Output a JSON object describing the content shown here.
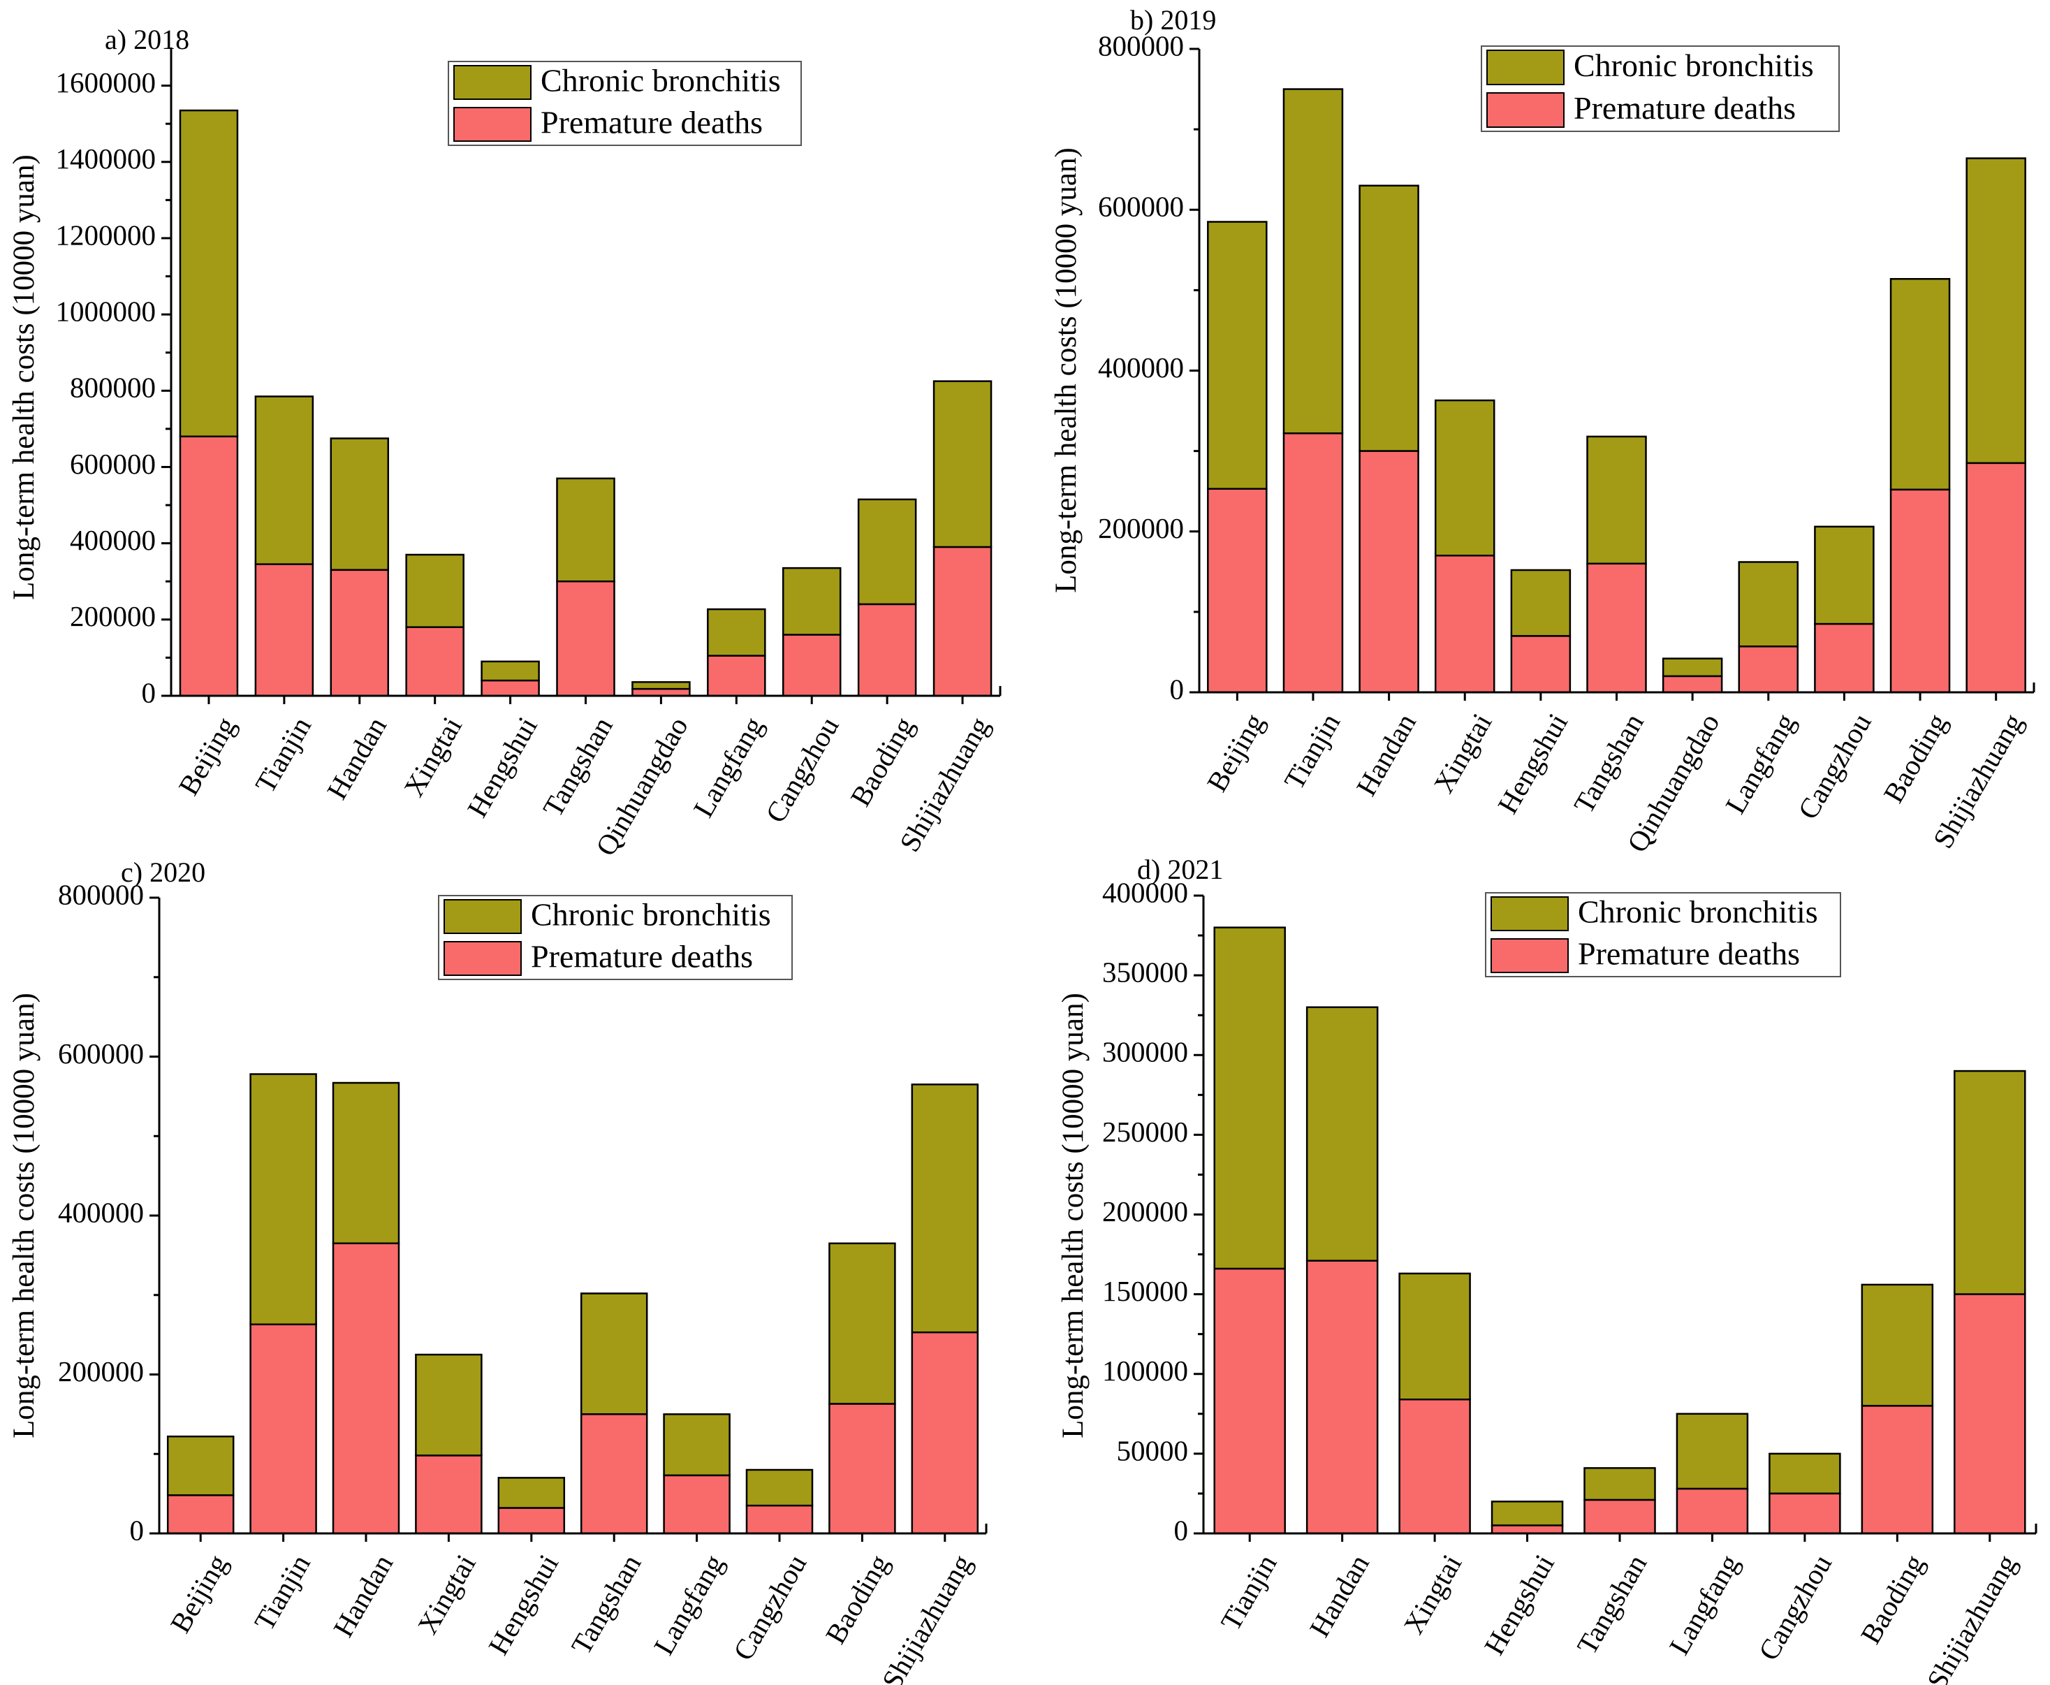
{
  "colors": {
    "chronic_bronchitis": "#A39B15",
    "premature_deaths": "#F96B6B"
  },
  "chart_data": [
    {
      "type": "bar",
      "stacked": true,
      "title": "a) 2018",
      "ylabel": "Long-term health costs (10000 yuan)",
      "xlabel": "",
      "ylim": [
        0,
        1700000
      ],
      "yticks": [
        0,
        200000,
        400000,
        600000,
        800000,
        1000000,
        1200000,
        1400000,
        1600000
      ],
      "ytick_labels": [
        "0",
        "200000",
        "400000",
        "600000",
        "800000",
        "1000000",
        "1200000",
        "1400000",
        "1600000"
      ],
      "legend_position": "top-right",
      "categories": [
        "Beijing",
        "Tianjin",
        "Handan",
        "Xingtai",
        "Hengshui",
        "Tangshan",
        "Qinhuangdao",
        "Langfang",
        "Cangzhou",
        "Baoding",
        "Shijiazhuang"
      ],
      "series": [
        {
          "name": "Premature deaths",
          "values": [
            680000,
            345000,
            330000,
            180000,
            40000,
            300000,
            18000,
            105000,
            160000,
            240000,
            390000
          ]
        },
        {
          "name": "Chronic bronchitis",
          "values": [
            855000,
            440000,
            345000,
            190000,
            50000,
            270000,
            18000,
            122000,
            175000,
            275000,
            435000
          ]
        }
      ]
    },
    {
      "type": "bar",
      "stacked": true,
      "title": "b) 2019",
      "ylabel": "Long-term health costs (10000 yuan)",
      "xlabel": "",
      "ylim": [
        0,
        800000
      ],
      "yticks": [
        0,
        200000,
        400000,
        600000,
        800000
      ],
      "ytick_labels": [
        "0",
        "200000",
        "400000",
        "600000",
        "800000"
      ],
      "legend_position": "top-right",
      "categories": [
        "Beijing",
        "Tianjin",
        "Handan",
        "Xingtai",
        "Hengshui",
        "Tangshan",
        "Qinhuangdao",
        "Langfang",
        "Cangzhou",
        "Baoding",
        "Shijiazhuang"
      ],
      "series": [
        {
          "name": "Premature deaths",
          "values": [
            253000,
            322000,
            300000,
            170000,
            70000,
            160000,
            20000,
            57000,
            85000,
            252000,
            285000
          ]
        },
        {
          "name": "Chronic bronchitis",
          "values": [
            332000,
            428000,
            330000,
            193000,
            82000,
            158000,
            22000,
            105000,
            121000,
            262000,
            379000
          ]
        }
      ]
    },
    {
      "type": "bar",
      "stacked": true,
      "title": "c) 2020",
      "ylabel": "Long-term health costs (10000 yuan)",
      "xlabel": "",
      "ylim": [
        0,
        800000
      ],
      "yticks": [
        0,
        200000,
        400000,
        600000,
        800000
      ],
      "ytick_labels": [
        "0",
        "200000",
        "400000",
        "600000",
        "800000"
      ],
      "legend_position": "top-right",
      "categories": [
        "Beijing",
        "Tianjin",
        "Handan",
        "Xingtai",
        "Hengshui",
        "Tangshan",
        "Langfang",
        "Cangzhou",
        "Baoding",
        "Shijiazhuang"
      ],
      "series": [
        {
          "name": "Premature deaths",
          "values": [
            48000,
            263000,
            365000,
            98000,
            32000,
            150000,
            73000,
            35000,
            163000,
            253000
          ]
        },
        {
          "name": "Chronic bronchitis",
          "values": [
            74000,
            315000,
            202000,
            127000,
            38000,
            152000,
            77000,
            45000,
            202000,
            312000
          ]
        }
      ]
    },
    {
      "type": "bar",
      "stacked": true,
      "title": "d) 2021",
      "ylabel": "Long-term health costs (10000 yuan)",
      "xlabel": "",
      "ylim": [
        0,
        400000
      ],
      "yticks": [
        0,
        50000,
        100000,
        150000,
        200000,
        250000,
        300000,
        350000,
        400000
      ],
      "ytick_labels": [
        "0",
        "50000",
        "100000",
        "150000",
        "200000",
        "250000",
        "300000",
        "350000",
        "400000"
      ],
      "legend_position": "top-right",
      "categories": [
        "Tianjin",
        "Handan",
        "Xingtai",
        "Hengshui",
        "Tangshan",
        "Langfang",
        "Cangzhou",
        "Baoding",
        "Shijiazhuang"
      ],
      "series": [
        {
          "name": "Premature deaths",
          "values": [
            166000,
            171000,
            84000,
            5000,
            21000,
            28000,
            25000,
            80000,
            150000
          ]
        },
        {
          "name": "Chronic bronchitis",
          "values": [
            214000,
            159000,
            79000,
            15000,
            20000,
            47000,
            25000,
            76000,
            140000
          ]
        }
      ]
    }
  ]
}
